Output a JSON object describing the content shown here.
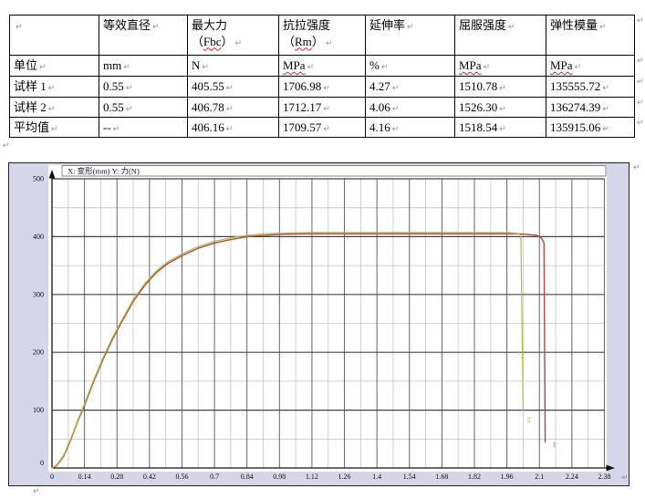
{
  "table": {
    "misspelled": [
      "Fbc",
      "Rm",
      "MPa"
    ],
    "header_row": [
      [
        ""
      ],
      [
        "等效直径"
      ],
      [
        "最大力",
        "（Fbc）"
      ],
      [
        "抗拉强度",
        "（Rm）"
      ],
      [
        "延伸率"
      ],
      [
        "屈服强度"
      ],
      [
        "弹性模量"
      ]
    ],
    "rows": [
      [
        "单位",
        "mm",
        "N",
        "MPa",
        "%",
        "MPa",
        "MPa"
      ],
      [
        "试样 1",
        "0.55",
        "405.55",
        "1706.98",
        "4.27",
        "1510.78",
        "135555.72"
      ],
      [
        "试样 2",
        "0.55",
        "406.78",
        "1712.17",
        "4.06",
        "1526.30",
        "136274.39"
      ],
      [
        "平均值",
        "--",
        "406.16",
        "1709.57",
        "4.16",
        "1518.54",
        "135915.06"
      ]
    ]
  },
  "marks": {
    "pilcrow": "↵"
  },
  "chart_data": {
    "type": "line",
    "title": "X: 变形(mm)   Y: 力(N)",
    "xlabel": "变形(mm)",
    "ylabel": "力(N)",
    "xlim": [
      0,
      2.38
    ],
    "ylim": [
      0,
      500
    ],
    "x_major_step": 0.14,
    "x_minor_step": 0.07,
    "y_major_step": 100,
    "y_minor_step": 50,
    "grid": true,
    "legend_position": "none",
    "x_ticks": [
      "0",
      "0.14",
      "0.28",
      "0.42",
      "0.56",
      "0.7",
      "0.84",
      "0.98",
      "1.12",
      "1.26",
      "1.4",
      "1.54",
      "1.68",
      "1.82",
      "1.96",
      "2.1",
      "2.24",
      "2.38"
    ],
    "y_ticks": [
      "0",
      "100",
      "200",
      "300",
      "400",
      "500"
    ],
    "colors": {
      "plot_bg": "#ffffff",
      "outer_bg": "#d6d6ea",
      "grid_major_h": "#444444",
      "grid_major_v": "#666666",
      "grid_minor": "#c4c4c4",
      "axis": "#111111",
      "series1": "#a84848",
      "series1_label": "#c06060",
      "series2": "#b8b845",
      "series2_label": "#b8b845"
    },
    "series": [
      {
        "name": "1",
        "specimen": "试样 1",
        "color_key": "series1",
        "label": "1",
        "label_pos": [
          2.165,
          36
        ],
        "points": [
          [
            0,
            0
          ],
          [
            0.02,
            4
          ],
          [
            0.05,
            20
          ],
          [
            0.08,
            48
          ],
          [
            0.11,
            80
          ],
          [
            0.14,
            108
          ],
          [
            0.18,
            150
          ],
          [
            0.22,
            188
          ],
          [
            0.26,
            222
          ],
          [
            0.3,
            252
          ],
          [
            0.35,
            288
          ],
          [
            0.4,
            316
          ],
          [
            0.45,
            338
          ],
          [
            0.5,
            354
          ],
          [
            0.56,
            367
          ],
          [
            0.63,
            380
          ],
          [
            0.7,
            389
          ],
          [
            0.77,
            395
          ],
          [
            0.84,
            400
          ],
          [
            0.91,
            402
          ],
          [
            0.98,
            404
          ],
          [
            1.1,
            405
          ],
          [
            1.3,
            405
          ],
          [
            1.5,
            405
          ],
          [
            1.7,
            405
          ],
          [
            1.9,
            405
          ],
          [
            2.0,
            405
          ],
          [
            2.05,
            404
          ],
          [
            2.09,
            402
          ],
          [
            2.11,
            397
          ],
          [
            2.12,
            389
          ],
          [
            2.125,
            45
          ]
        ]
      },
      {
        "name": "2",
        "specimen": "试样 2",
        "color_key": "series2",
        "label": "2",
        "label_pos": [
          2.055,
          80
        ],
        "points": [
          [
            0,
            0
          ],
          [
            0.02,
            5
          ],
          [
            0.05,
            22
          ],
          [
            0.08,
            50
          ],
          [
            0.11,
            82
          ],
          [
            0.14,
            111
          ],
          [
            0.18,
            153
          ],
          [
            0.22,
            191
          ],
          [
            0.26,
            225
          ],
          [
            0.3,
            255
          ],
          [
            0.35,
            291
          ],
          [
            0.4,
            319
          ],
          [
            0.45,
            341
          ],
          [
            0.5,
            357
          ],
          [
            0.56,
            370
          ],
          [
            0.63,
            383
          ],
          [
            0.7,
            392
          ],
          [
            0.77,
            398
          ],
          [
            0.84,
            402
          ],
          [
            0.91,
            405
          ],
          [
            0.98,
            406
          ],
          [
            1.1,
            407
          ],
          [
            1.3,
            407
          ],
          [
            1.5,
            407
          ],
          [
            1.7,
            407
          ],
          [
            1.9,
            407
          ],
          [
            1.97,
            407
          ],
          [
            2.0,
            406
          ],
          [
            2.02,
            403
          ],
          [
            2.03,
            100
          ]
        ]
      }
    ]
  }
}
